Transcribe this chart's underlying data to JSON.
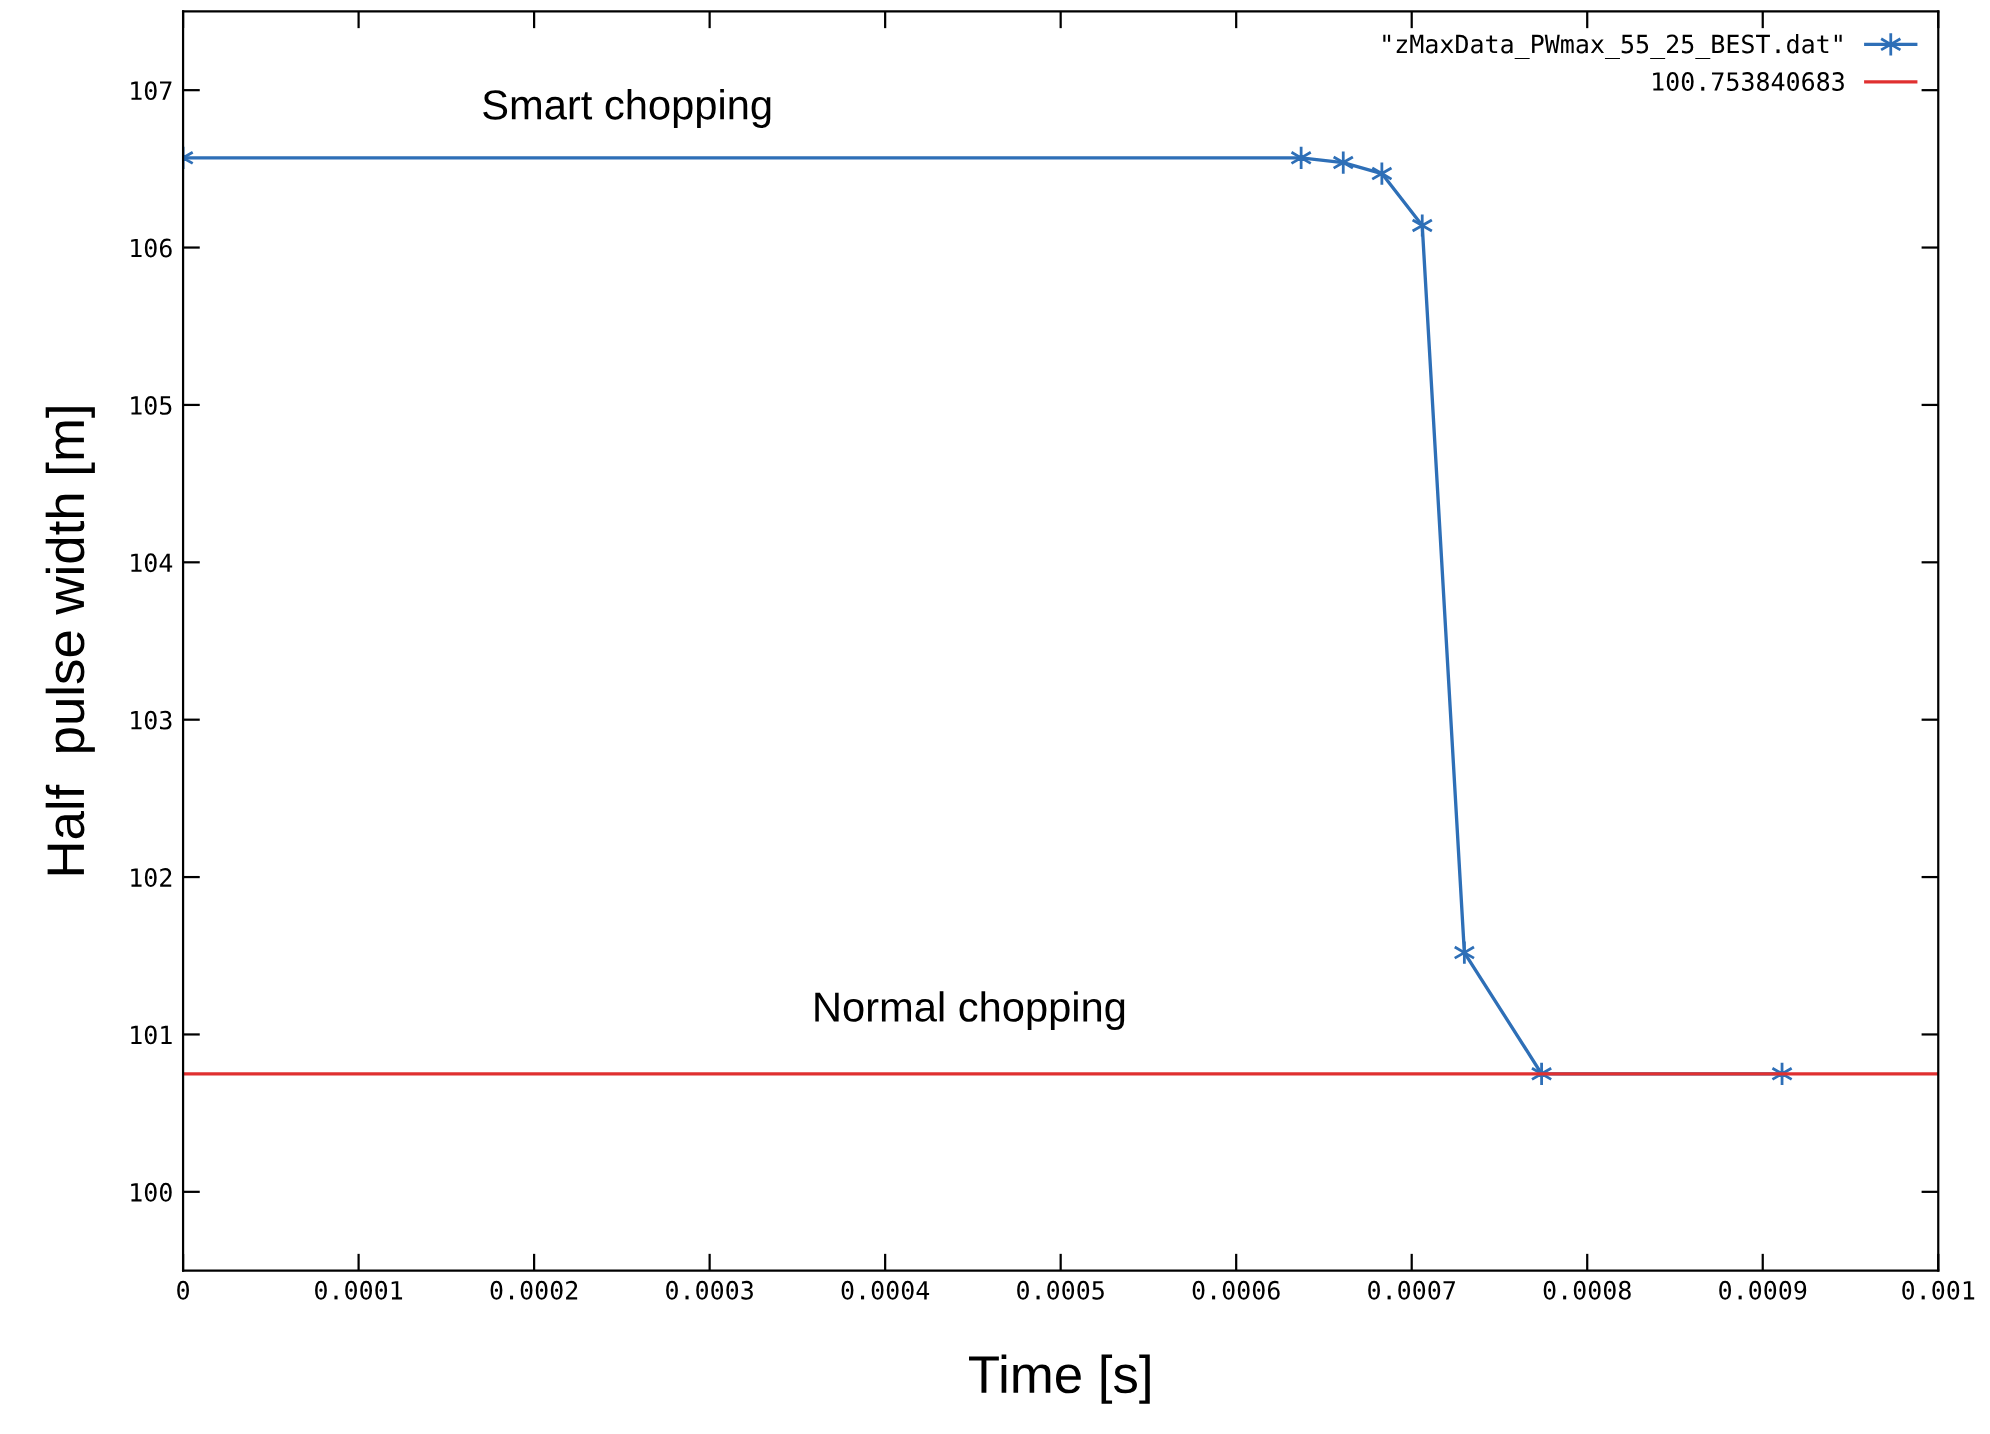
{
  "chart_data": {
    "type": "line",
    "xlabel": "Time [s]",
    "ylabel": "Half  pulse width [m]",
    "series": [
      {
        "name": "\"zMaxData_PWmax_55_25_BEST.dat\"",
        "color": "#2e6fb7",
        "marker": "cross",
        "x": [
          0,
          0.000637,
          0.000661,
          0.000683,
          0.000706,
          0.00073,
          0.000774,
          0.000911
        ],
        "values": [
          106.57,
          106.57,
          106.54,
          106.47,
          106.14,
          101.52,
          100.75,
          100.75
        ]
      },
      {
        "name": "100.753840683",
        "color": "#e03030",
        "marker": "none",
        "x": [
          0,
          0.001
        ],
        "values": [
          100.75,
          100.75
        ]
      }
    ],
    "annotations": [
      "Smart chopping",
      "Normal chopping"
    ],
    "xlim": [
      0,
      0.001
    ],
    "xticks": [
      0,
      0.0001,
      0.0002,
      0.0003,
      0.0004,
      0.0005,
      0.0006,
      0.0007,
      0.0008,
      0.0009,
      0.001
    ],
    "ylim": [
      99.5,
      107.5
    ],
    "yticks": [
      100,
      101,
      102,
      103,
      104,
      105,
      106,
      107
    ],
    "grid": false,
    "legend": "top right",
    "line_style": "solid"
  }
}
